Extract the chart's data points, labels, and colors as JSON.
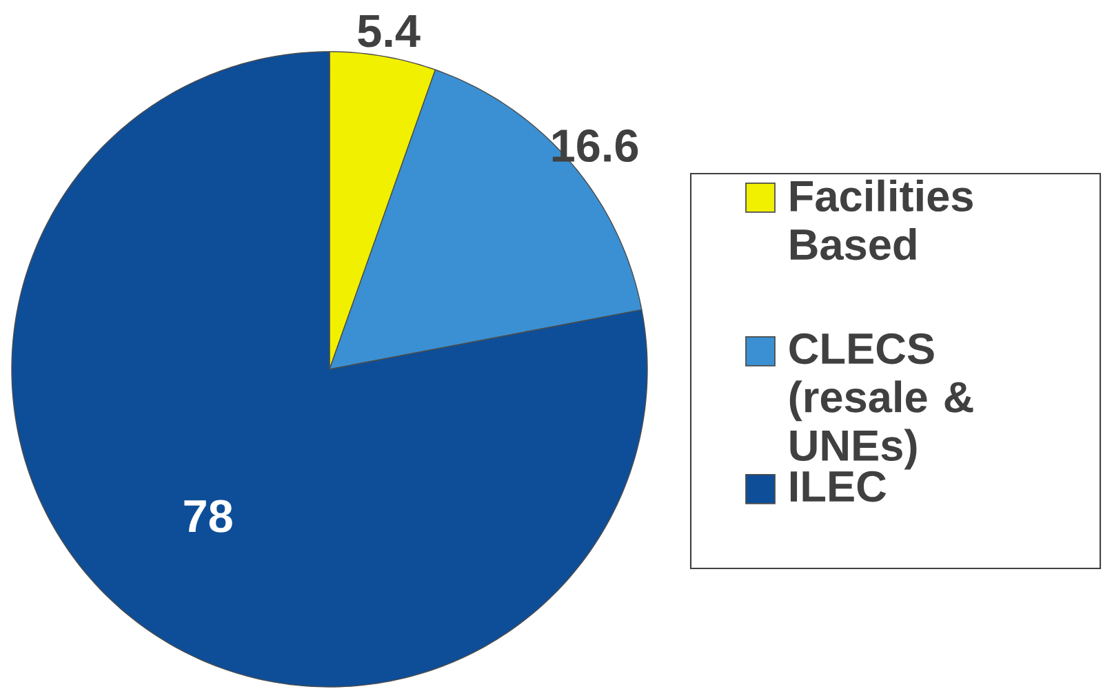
{
  "chart_data": {
    "type": "pie",
    "categories": [
      "Facilities Based",
      "CLECS (resale & UNEs)",
      "ILEC"
    ],
    "values": [
      5.4,
      16.6,
      78
    ],
    "colors": [
      "#f0f000",
      "#3a90d2",
      "#0e4e98"
    ],
    "data_labels": true,
    "legend": "right"
  }
}
